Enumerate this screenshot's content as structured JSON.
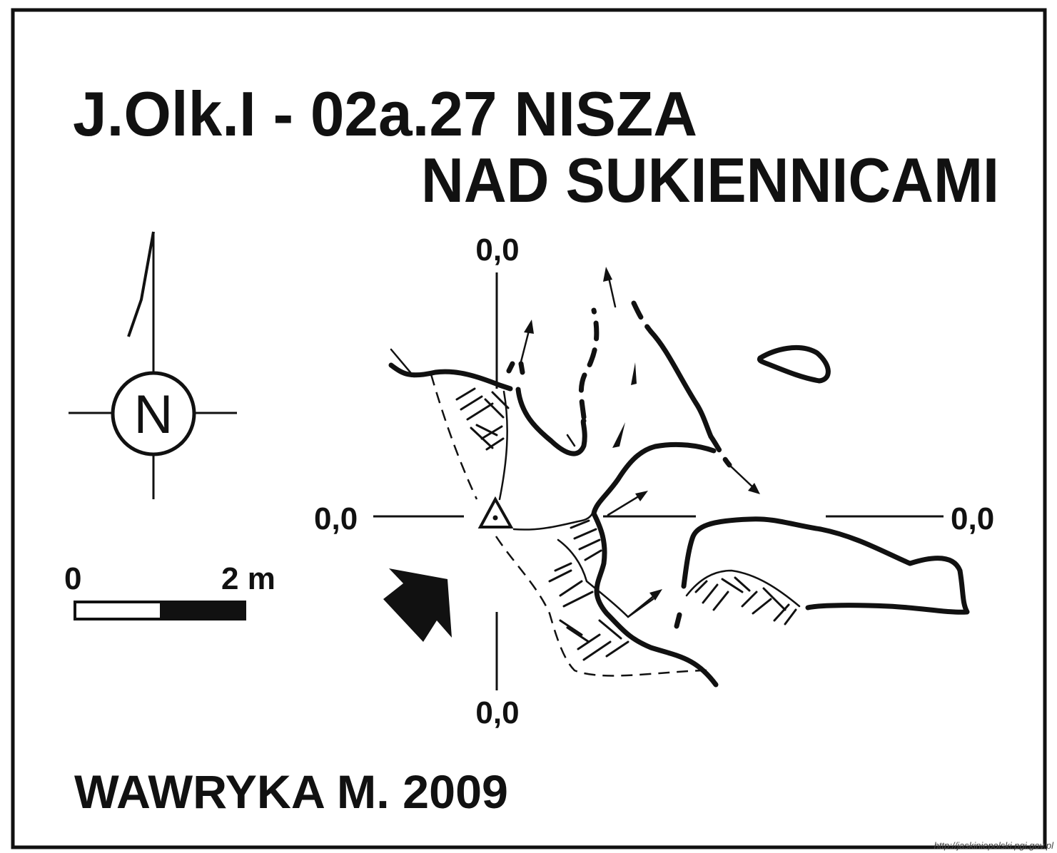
{
  "title": {
    "line1": "J.Olk.I - 02a.27  NISZA",
    "line2": "NAD SUKIENNICAMI"
  },
  "compass": {
    "letter": "N",
    "icon": "north-arrow-icon"
  },
  "scale_bar": {
    "start_label": "0",
    "end_label": "2 m"
  },
  "coordinates": {
    "top": "0,0",
    "left": "0,0",
    "right": "0,0",
    "bottom": "0,0"
  },
  "entrance_arrow": {
    "icon": "entrance-arrow-icon"
  },
  "survey_point": {
    "icon": "survey-station-triangle-icon"
  },
  "author": "WAWRYKA M. 2009",
  "source_url": "http://jaskiniepolski.pgi.gov.pl"
}
